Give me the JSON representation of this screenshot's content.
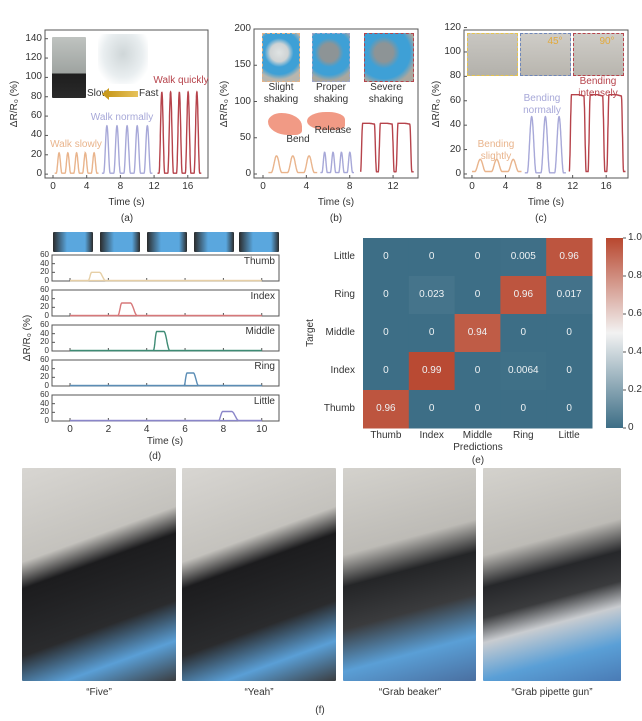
{
  "chart_data": [
    {
      "panel_label": "(a)",
      "type": "line",
      "xlabel": "Time (s)",
      "ylabel": "ΔR/R₀ (%)",
      "xlim": [
        -0.95,
        18.4
      ],
      "ylim": [
        -4,
        149
      ],
      "xticks": [
        0,
        4,
        8,
        12,
        16
      ],
      "yticks": [
        0,
        20,
        40,
        60,
        80,
        100,
        120,
        140
      ],
      "grid": false,
      "series": [
        {
          "name": "Walk slowly",
          "color": "#e9b48c",
          "x_range": [
            0.2,
            5.4
          ],
          "peaks": 5,
          "peak_value": 22,
          "baseline": 1,
          "shape": "pulse"
        },
        {
          "name": "Walk normally",
          "color": "#a7a8d8",
          "x_range": [
            5.8,
            11.8
          ],
          "peaks": 5,
          "peak_value": 50,
          "baseline": 1,
          "shape": "pulse"
        },
        {
          "name": "Walk quickly",
          "color": "#b6434b",
          "x_range": [
            12.4,
            17.6
          ],
          "peaks": 5,
          "peak_value": 85,
          "baseline": 1,
          "shape": "pulse"
        }
      ],
      "annotations": {
        "slow": "Slow",
        "fast": "Fast"
      }
    },
    {
      "panel_label": "(b)",
      "type": "line",
      "xlabel": "Time (s)",
      "ylabel": "ΔR/R₀ (%)",
      "xlim": [
        -0.83,
        14.3
      ],
      "ylim": [
        -5.5,
        200
      ],
      "xticks": [
        0,
        4,
        8,
        12
      ],
      "yticks": [
        0,
        50,
        100,
        150,
        200
      ],
      "grid": false,
      "series": [
        {
          "color": "#e9b48c",
          "x_range": [
            0.5,
            5.0
          ],
          "peaks": 3,
          "peak_value": 25,
          "baseline": 2,
          "shape": "pulse"
        },
        {
          "color": "#a7a8d8",
          "x_range": [
            5.3,
            8.4
          ],
          "peaks": 4,
          "peak_value": 30,
          "baseline": 2,
          "shape": "pulse"
        },
        {
          "color": "#b6434b",
          "x_range": [
            9.0,
            13.9
          ],
          "peaks": 3,
          "peak_value": 70,
          "baseline": 3,
          "shape": "plateau"
        }
      ],
      "insets": [
        "Slight shaking",
        "Proper shaking",
        "Severe shaking"
      ],
      "annotations": {
        "bend": "Bend",
        "release": "Release"
      }
    },
    {
      "panel_label": "(c)",
      "type": "line",
      "xlabel": "Time (s)",
      "ylabel": "ΔR/R₀ (%)",
      "xlim": [
        -0.95,
        18.6
      ],
      "ylim": [
        -3.3,
        118
      ],
      "xticks": [
        0,
        4,
        8,
        12,
        16
      ],
      "yticks": [
        0,
        20,
        40,
        60,
        80,
        100,
        120
      ],
      "grid": false,
      "series": [
        {
          "name": "Bending slightly",
          "color": "#e9b48c",
          "x_range": [
            0.0,
            5.9
          ],
          "peaks": 3,
          "peak_value": 12,
          "baseline": 2,
          "shape": "pulse"
        },
        {
          "name": "Bending normally",
          "color": "#a7a8d8",
          "x_range": [
            6.3,
            11.2
          ],
          "peaks": 3,
          "peak_value": 47,
          "baseline": 1,
          "shape": "pulse"
        },
        {
          "name": "Bending intensely",
          "color": "#b6434b",
          "x_range": [
            11.6,
            18.3
          ],
          "peaks": 3,
          "peak_value": 65,
          "baseline": 2,
          "shape": "plateau"
        }
      ],
      "inset_angles": [
        "45°",
        "90°"
      ]
    },
    {
      "panel_label": "(d)",
      "type": "line",
      "xlabel": "Time (s)",
      "ylabel": "ΔR/R₀ (%)",
      "xlim": [
        -0.94,
        10.9
      ],
      "ylim": [
        0,
        60
      ],
      "xticks": [
        0,
        2,
        4,
        6,
        8,
        10
      ],
      "yticks": [
        0,
        20,
        40,
        60
      ],
      "grid": false,
      "layout": "stacked",
      "series": [
        {
          "name": "Thumb",
          "color": "#e6cfa6",
          "x_range": [
            0.95,
            1.85
          ],
          "peak_value": 20
        },
        {
          "name": "Index",
          "color": "#d7787a",
          "x_range": [
            2.5,
            3.5
          ],
          "peak_value": 30
        },
        {
          "name": "Middle",
          "color": "#3e8b74",
          "x_range": [
            4.35,
            5.2
          ],
          "peak_value": 45
        },
        {
          "name": "Ring",
          "color": "#5b8db5",
          "x_range": [
            5.95,
            6.7
          ],
          "peak_value": 30
        },
        {
          "name": "Little",
          "color": "#8a86c9",
          "x_range": [
            7.75,
            8.8
          ],
          "peak_value": 22
        }
      ]
    },
    {
      "panel_label": "(e)",
      "type": "heatmap",
      "xlabel": "Predictions",
      "ylabel": "Target",
      "x_categories": [
        "Thumb",
        "Index",
        "Middle",
        "Ring",
        "Little"
      ],
      "y_categories": [
        "Little",
        "Ring",
        "Middle",
        "Index",
        "Thumb"
      ],
      "values": [
        [
          0,
          0,
          0,
          0.005,
          0.96
        ],
        [
          0,
          0.023,
          0,
          0.96,
          0.017
        ],
        [
          0,
          0,
          0.94,
          0,
          0
        ],
        [
          0,
          0.99,
          0,
          0.0064,
          0
        ],
        [
          0.96,
          0,
          0,
          0,
          0
        ]
      ],
      "colorbar": {
        "range": [
          0,
          1.0
        ],
        "ticks": [
          "0",
          "0.2",
          "0.4",
          "0.6",
          "0.8",
          "1.0"
        ],
        "low_color": "#3d6e86",
        "mid_color": "#f2f2f2",
        "high_color": "#b8472f"
      }
    }
  ],
  "panel_f": {
    "label": "(f)",
    "photos": [
      {
        "caption": "“Five”"
      },
      {
        "caption": "“Yeah”"
      },
      {
        "caption": "“Grab beaker”"
      },
      {
        "caption": "“Grab pipette gun”"
      }
    ]
  }
}
